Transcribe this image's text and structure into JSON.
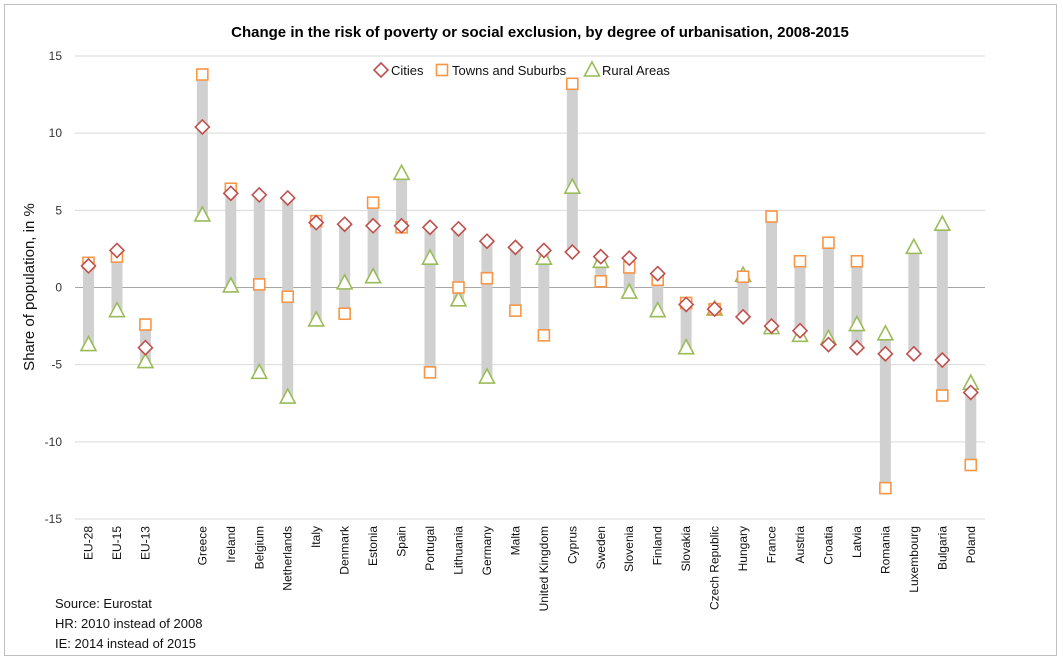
{
  "chart_data": {
    "type": "scatter",
    "title": "Change in the risk of poverty or social exclusion, by degree of urbanisation, 2008-2015",
    "ylabel": "Share of population, in %",
    "xlabel": "",
    "ylim": [
      -15,
      15
    ],
    "yticks": [
      15,
      10,
      5,
      0,
      -5,
      -10,
      -15
    ],
    "grid": true,
    "legend_position": "top-center",
    "categories": [
      "EU-28",
      "EU-15",
      "EU-13",
      "",
      "Greece",
      "Ireland",
      "Belgium",
      "Netherlands",
      "Italy",
      "Denmark",
      "Estonia",
      "Spain",
      "Portugal",
      "Lithuania",
      "Germany",
      "Malta",
      "United Kingdom",
      "Cyprus",
      "Sweden",
      "Slovenia",
      "Finland",
      "Slovakia",
      "Czech Republic",
      "Hungary",
      "France",
      "Austria",
      "Croatia",
      "Latvia",
      "Romania",
      "Luxembourg",
      "Bulgaria",
      "Poland"
    ],
    "series": [
      {
        "name": "Cities",
        "marker": "diamond",
        "color": "#c0504d",
        "values": [
          1.4,
          2.4,
          -3.9,
          null,
          10.4,
          6.1,
          6.0,
          5.8,
          4.2,
          4.1,
          4.0,
          4.0,
          3.9,
          3.8,
          3.0,
          2.6,
          2.4,
          2.3,
          2.0,
          1.9,
          0.9,
          -1.1,
          -1.4,
          -1.9,
          -2.5,
          -2.8,
          -3.7,
          -3.9,
          -4.3,
          -4.3,
          -4.7,
          -6.8
        ]
      },
      {
        "name": "Towns and Suburbs",
        "marker": "square",
        "color": "#f79646",
        "values": [
          1.6,
          2.0,
          -2.4,
          null,
          13.8,
          6.4,
          0.2,
          -0.6,
          4.3,
          -1.7,
          5.5,
          3.9,
          -5.5,
          0.0,
          0.6,
          -1.5,
          -3.1,
          13.2,
          0.4,
          1.3,
          0.5,
          -1.0,
          -1.4,
          0.7,
          4.6,
          1.7,
          2.9,
          1.7,
          -13.0,
          null,
          -7.0,
          -11.5
        ]
      },
      {
        "name": "Rural Areas",
        "marker": "triangle",
        "color": "#9bbb59",
        "values": [
          -3.7,
          -1.5,
          -4.8,
          null,
          4.7,
          0.1,
          -5.5,
          -7.1,
          -2.1,
          0.3,
          0.7,
          7.4,
          1.9,
          -0.8,
          -5.8,
          null,
          1.9,
          6.5,
          1.7,
          -0.3,
          -1.5,
          -3.9,
          -1.4,
          0.8,
          -2.6,
          -3.1,
          -3.3,
          -2.4,
          -3.0,
          2.6,
          4.1,
          -6.2
        ]
      }
    ]
  },
  "notes": {
    "source": "Source: Eurostat",
    "hr": "HR: 2010 instead of 2008",
    "ie": "IE:  2014 instead of 2015"
  }
}
